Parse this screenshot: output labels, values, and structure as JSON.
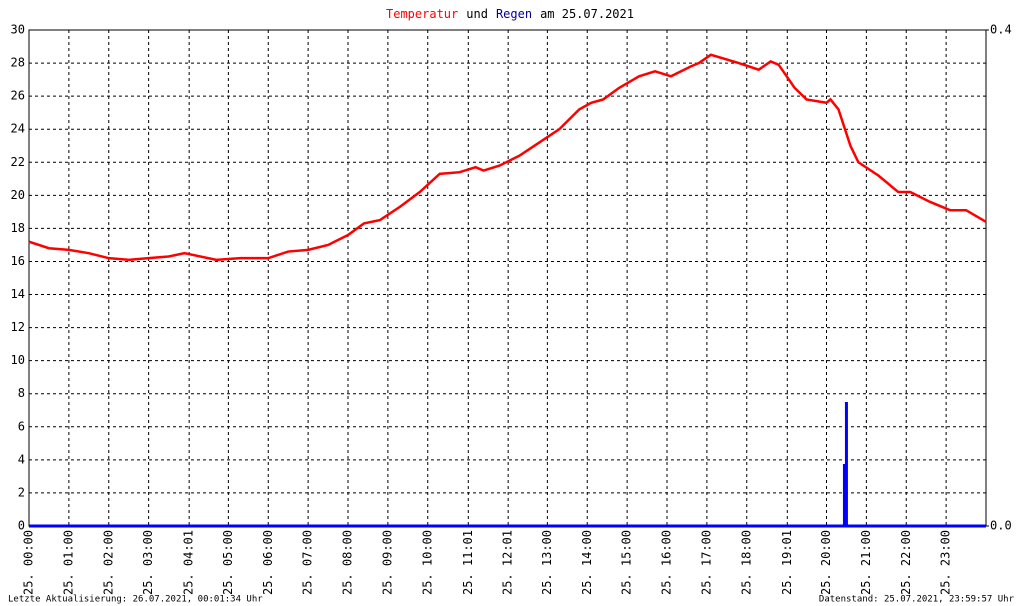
{
  "chart_data": {
    "type": "line",
    "title_parts": [
      {
        "text": "Temperatur",
        "color": "#ff0000"
      },
      {
        "text": "und",
        "color": "#000000"
      },
      {
        "text": "Regen",
        "color": "#000099"
      },
      {
        "text": "am 25.07.2021",
        "color": "#000000"
      }
    ],
    "footer_left": "Letzte Aktualisierung: 26.07.2021, 00:01:34 Uhr",
    "footer_right": "Datenstand: 25.07.2021, 23:59:57 Uhr",
    "x": [
      0,
      0.5,
      1.0,
      1.5,
      2.0,
      2.5,
      3.0,
      3.5,
      3.9,
      4.7,
      5.3,
      6.0,
      6.5,
      7.0,
      7.5,
      8.0,
      8.4,
      8.8,
      9.3,
      9.8,
      10.3,
      10.8,
      11.2,
      11.4,
      11.8,
      12.3,
      12.8,
      13.3,
      13.8,
      14.1,
      14.4,
      14.8,
      15.3,
      15.7,
      16.1,
      16.6,
      16.8,
      17.1,
      17.8,
      18.3,
      18.6,
      18.8,
      19.2,
      19.5,
      20.0,
      20.1,
      20.3,
      20.6,
      20.8,
      21.3,
      21.8,
      22.1,
      22.6,
      23.1,
      23.5,
      24.0
    ],
    "series": [
      {
        "name": "Temperatur",
        "type": "line",
        "color": "#ff0000",
        "values": [
          17.2,
          16.8,
          16.7,
          16.5,
          16.2,
          16.1,
          16.2,
          16.3,
          16.5,
          16.1,
          16.2,
          16.2,
          16.6,
          16.7,
          17.0,
          17.6,
          18.3,
          18.5,
          19.3,
          20.2,
          21.3,
          21.4,
          21.7,
          21.5,
          21.8,
          22.4,
          23.2,
          24.0,
          25.2,
          25.6,
          25.8,
          26.5,
          27.2,
          27.5,
          27.2,
          27.8,
          28.0,
          28.5,
          28.0,
          27.6,
          28.1,
          27.9,
          26.5,
          25.8,
          25.6,
          25.8,
          25.2,
          23.0,
          22.0,
          21.2,
          20.2,
          20.2,
          19.6,
          19.1,
          19.1,
          18.4
        ]
      },
      {
        "name": "Regen",
        "type": "bar",
        "axis": "y2",
        "color": "#0000ff",
        "x": [
          20.45,
          20.5
        ],
        "values": [
          0.05,
          0.1
        ]
      }
    ],
    "xlim": [
      0,
      24
    ],
    "xticks": [
      {
        "value": 0,
        "label": "25. 00:00"
      },
      {
        "value": 1,
        "label": "25. 01:00"
      },
      {
        "value": 2,
        "label": "25. 02:00"
      },
      {
        "value": 3,
        "label": "25. 03:00"
      },
      {
        "value": 4.0167,
        "label": "25. 04:01"
      },
      {
        "value": 5,
        "label": "25. 05:00"
      },
      {
        "value": 6,
        "label": "25. 06:00"
      },
      {
        "value": 7,
        "label": "25. 07:00"
      },
      {
        "value": 8,
        "label": "25. 08:00"
      },
      {
        "value": 9,
        "label": "25. 09:00"
      },
      {
        "value": 10,
        "label": "25. 10:00"
      },
      {
        "value": 11.0167,
        "label": "25. 11:01"
      },
      {
        "value": 12.0167,
        "label": "25. 12:01"
      },
      {
        "value": 13,
        "label": "25. 13:00"
      },
      {
        "value": 14,
        "label": "25. 14:00"
      },
      {
        "value": 15,
        "label": "25. 15:00"
      },
      {
        "value": 16,
        "label": "25. 16:00"
      },
      {
        "value": 17,
        "label": "25. 17:00"
      },
      {
        "value": 18,
        "label": "25. 18:00"
      },
      {
        "value": 19.0167,
        "label": "25. 19:01"
      },
      {
        "value": 20,
        "label": "25. 20:00"
      },
      {
        "value": 21,
        "label": "25. 21:00"
      },
      {
        "value": 22,
        "label": "25. 22:00"
      },
      {
        "value": 23,
        "label": "25. 23:00"
      }
    ],
    "ylim": [
      0,
      30
    ],
    "yticks": [
      0,
      2,
      4,
      6,
      8,
      10,
      12,
      14,
      16,
      18,
      20,
      22,
      24,
      26,
      28,
      30
    ],
    "y2lim": [
      0,
      0.4
    ],
    "y2ticks": [
      {
        "value": 0,
        "label": "0.0"
      },
      0.4
    ],
    "grid": true
  }
}
